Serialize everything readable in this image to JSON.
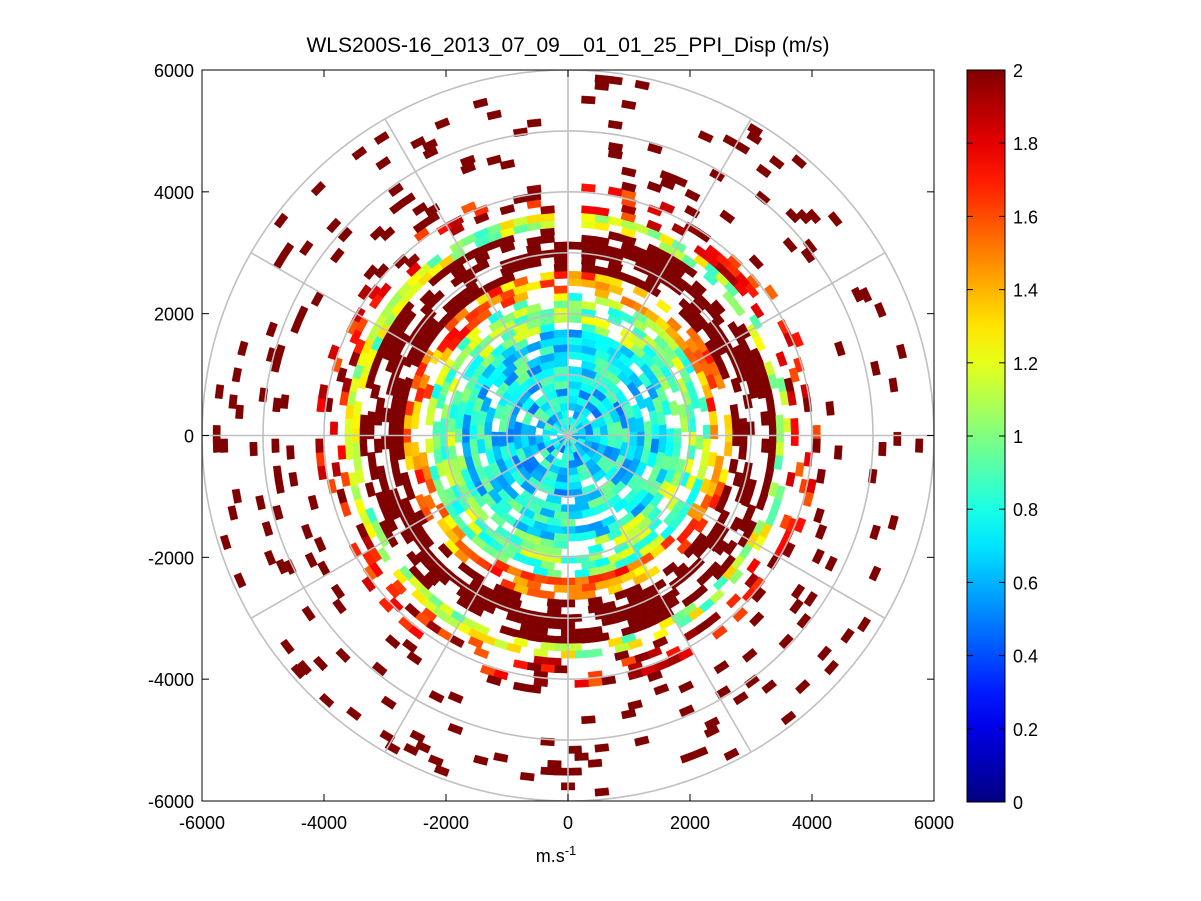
{
  "chart_data": {
    "type": "heatmap",
    "subtype": "polar-ppi",
    "title": "WLS200S-16_2013_07_09__01_01_25_PPI_Disp (m/s)",
    "xlabel": "m.s",
    "xlabel_superscript": "-1",
    "ylabel": "",
    "xlim": [
      -6000,
      6000
    ],
    "ylim": [
      -6000,
      6000
    ],
    "xticks": [
      -6000,
      -4000,
      -2000,
      0,
      2000,
      4000,
      6000
    ],
    "yticks": [
      6000,
      4000,
      2000,
      0,
      -2000,
      -4000,
      -6000
    ],
    "xtick_labels": [
      "-6000",
      "-4000",
      "-2000",
      "0",
      "2000",
      "4000",
      "6000"
    ],
    "ytick_labels": [
      "6000",
      "4000",
      "2000",
      "0",
      "-2000",
      "-4000",
      "-6000"
    ],
    "polar_rings": [
      1000,
      2000,
      3000,
      4000,
      5000,
      6000
    ],
    "polar_spokes_deg": [
      0,
      30,
      60,
      90,
      120,
      150,
      180,
      210,
      240,
      270,
      300,
      330
    ],
    "grid": true,
    "colormap": "jet",
    "colorbar": {
      "range": [
        0,
        2
      ],
      "ticks": [
        0,
        0.2,
        0.4,
        0.6,
        0.8,
        1,
        1.2,
        1.4,
        1.6,
        1.8,
        2
      ],
      "tick_labels": [
        "0",
        "0.2",
        "0.4",
        "0.6",
        "0.8",
        "1",
        "1.2",
        "1.4",
        "1.6",
        "1.8",
        "2"
      ]
    },
    "data_gap_azimuth_deg": [
      -2,
      2
    ],
    "radial_profile": [
      {
        "r": [
          0,
          1000
        ],
        "value": 0.7,
        "coverage": 0.95
      },
      {
        "r": [
          1000,
          1800
        ],
        "value": 0.75,
        "coverage": 0.9
      },
      {
        "r": [
          1800,
          2300
        ],
        "value": 1.0,
        "coverage": 0.8
      },
      {
        "r": [
          2300,
          2700
        ],
        "value": 1.5,
        "coverage": 0.7
      },
      {
        "r": [
          2700,
          3400
        ],
        "value": 2.0,
        "coverage": 0.65
      },
      {
        "r": [
          3400,
          3700
        ],
        "value": 1.1,
        "coverage": 0.8
      },
      {
        "r": [
          3700,
          4200
        ],
        "value": 1.8,
        "coverage": 0.35
      },
      {
        "r": [
          4200,
          5900
        ],
        "value": 2.0,
        "coverage": 0.08
      }
    ]
  }
}
